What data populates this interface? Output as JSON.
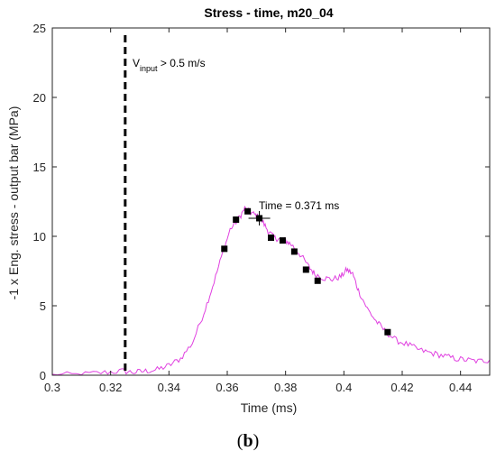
{
  "chart_data": {
    "type": "line",
    "title": "Stress - time, m20_04",
    "xlabel": "Time (ms)",
    "ylabel": "-1 x Eng. stress - output bar (MPa)",
    "xlim": [
      0.3,
      0.45
    ],
    "ylim": [
      0,
      25
    ],
    "xticks": [
      "0.3",
      "0.32",
      "0.34",
      "0.36",
      "0.38",
      "0.4",
      "0.42",
      "0.44"
    ],
    "yticks": [
      "0",
      "5",
      "10",
      "15",
      "20",
      "25"
    ],
    "grid": false,
    "series": [
      {
        "kind": "line",
        "color": "#e040e0",
        "x": [
          0.3,
          0.31,
          0.318,
          0.324,
          0.328,
          0.332,
          0.336,
          0.34,
          0.344,
          0.348,
          0.352,
          0.355,
          0.358,
          0.361,
          0.364,
          0.366,
          0.368,
          0.37,
          0.372,
          0.374,
          0.376,
          0.378,
          0.38,
          0.382,
          0.385,
          0.388,
          0.39,
          0.393,
          0.396,
          0.399,
          0.401,
          0.403,
          0.405,
          0.408,
          0.411,
          0.414,
          0.418,
          0.422,
          0.426,
          0.43,
          0.434,
          0.438,
          0.442,
          0.446,
          0.45
        ],
        "y": [
          0.0,
          0.05,
          0.2,
          0.3,
          0.2,
          0.3,
          0.4,
          0.7,
          1.2,
          2.3,
          4.5,
          6.4,
          8.5,
          10.5,
          11.3,
          12.0,
          11.7,
          11.5,
          11.1,
          10.4,
          9.9,
          9.8,
          9.7,
          9.4,
          8.7,
          7.8,
          7.3,
          7.0,
          6.9,
          7.1,
          7.6,
          7.3,
          6.1,
          4.8,
          3.9,
          3.2,
          2.5,
          2.2,
          1.8,
          1.6,
          1.4,
          1.2,
          1.1,
          1.0,
          1.1
        ]
      },
      {
        "kind": "markers",
        "color": "#000000",
        "x": [
          0.359,
          0.363,
          0.367,
          0.371,
          0.375,
          0.379,
          0.383,
          0.387,
          0.391,
          0.415
        ],
        "y": [
          9.1,
          11.2,
          11.8,
          11.3,
          9.9,
          9.7,
          8.9,
          7.6,
          6.8,
          3.1
        ]
      }
    ],
    "vline": {
      "x": 0.325,
      "style": "dashed",
      "color": "#000000"
    },
    "annotations": {
      "vline_text_main": "V",
      "vline_text_sub": "input",
      "vline_text_rest": " > 0.5 m/s",
      "cursor_text": "Time = 0.371 ms",
      "cursor_x": 0.371,
      "cursor_y": 11.3
    }
  },
  "panel_label": {
    "open": "(",
    "letter": "b",
    "close": ")"
  }
}
